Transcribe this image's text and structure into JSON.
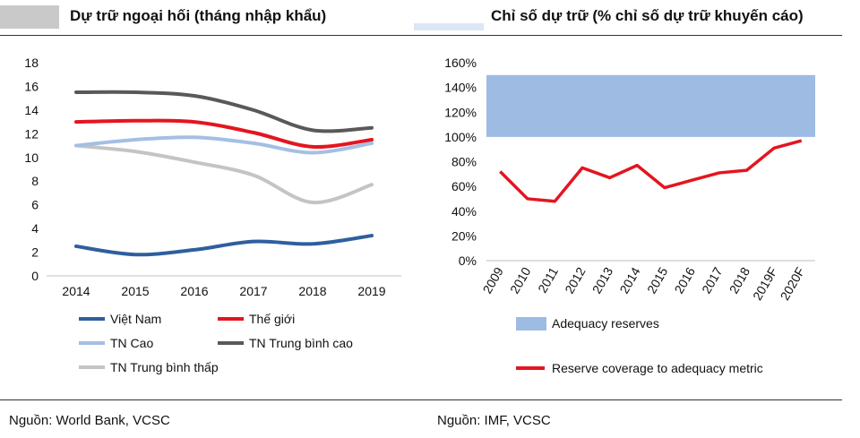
{
  "left_panel": {
    "title": "Dự trữ ngoại hối (tháng nhập khẩu)",
    "source": "Nguồn: World Bank, VCSC"
  },
  "right_panel": {
    "title": "Chỉ số dự trữ (% chỉ số dự trữ khuyến cáo)",
    "source": "Nguồn: IMF, VCSC"
  },
  "chart_data": [
    {
      "type": "line",
      "title": "Dự trữ ngoại hối (tháng nhập khẩu)",
      "xlabel": "",
      "ylabel": "",
      "categories": [
        "2014",
        "2015",
        "2016",
        "2017",
        "2018",
        "2019"
      ],
      "ylim": [
        0,
        18
      ],
      "yticks": [
        0,
        2,
        4,
        6,
        8,
        10,
        12,
        14,
        16,
        18
      ],
      "grid": false,
      "legend_position": "bottom",
      "series": [
        {
          "name": "Việt Nam",
          "color": "#2e5f9e",
          "values": [
            2.5,
            1.8,
            2.2,
            2.9,
            2.7,
            3.4
          ]
        },
        {
          "name": "Thế giới",
          "color": "#e4151f",
          "values": [
            13.0,
            13.1,
            13.0,
            12.1,
            10.9,
            11.5
          ]
        },
        {
          "name": "TN Cao",
          "color": "#a4bfe3",
          "values": [
            11.0,
            11.5,
            11.7,
            11.2,
            10.4,
            11.2
          ]
        },
        {
          "name": "TN Trung bình cao",
          "color": "#595959",
          "values": [
            15.5,
            15.5,
            15.2,
            14.0,
            12.3,
            12.5
          ]
        },
        {
          "name": "TN Trung bình thấp",
          "color": "#c4c4c4",
          "values": [
            11.0,
            10.5,
            9.6,
            8.5,
            6.2,
            7.7
          ]
        }
      ]
    },
    {
      "type": "line",
      "title": "Chỉ số dự trữ (% chỉ số dự trữ khuyến cáo)",
      "xlabel": "",
      "ylabel": "",
      "categories": [
        "2009",
        "2010",
        "2011",
        "2012",
        "2013",
        "2014",
        "2015",
        "2016",
        "2017",
        "2018",
        "2019F",
        "2020F"
      ],
      "ylim": [
        0,
        160
      ],
      "yticks": [
        0,
        20,
        40,
        60,
        80,
        100,
        120,
        140,
        160
      ],
      "ytick_suffix": "%",
      "grid": false,
      "legend_position": "bottom",
      "band": {
        "name": "Adequacy reserves",
        "color": "#9dbbe3",
        "from": 100,
        "to": 150
      },
      "series": [
        {
          "name": "Reserve coverage to adequacy metric",
          "color": "#e4151f",
          "values": [
            72,
            50,
            48,
            75,
            67,
            77,
            59,
            65,
            71,
            73,
            91,
            97
          ]
        }
      ]
    }
  ]
}
